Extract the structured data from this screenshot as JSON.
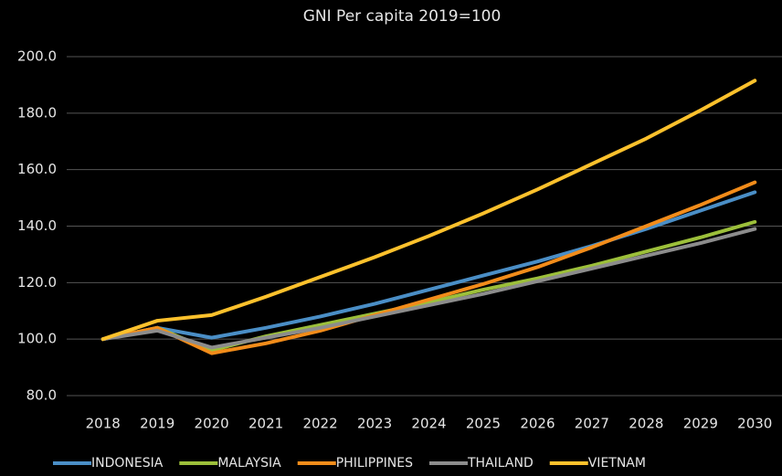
{
  "chart_data": {
    "type": "line",
    "title": "GNI Per capita 2019=100",
    "categories": [
      "2018",
      "2019",
      "2020",
      "2021",
      "2022",
      "2023",
      "2024",
      "2025",
      "2026",
      "2027",
      "2028",
      "2029",
      "2030"
    ],
    "series": [
      {
        "name": "INDONESIA",
        "color": "#4a8ec6",
        "values": [
          100,
          104,
          100.5,
          104,
          108,
          112.5,
          117.5,
          122.5,
          127.5,
          133,
          139,
          145.5,
          152
        ]
      },
      {
        "name": "MALAYSIA",
        "color": "#9cbf3a",
        "values": [
          100,
          104,
          96,
          101,
          105,
          109,
          113,
          117.5,
          121.5,
          126,
          131,
          136,
          141.5
        ]
      },
      {
        "name": "PHILIPPINES",
        "color": "#f28c1a",
        "values": [
          100,
          104,
          95,
          98.5,
          103,
          108.5,
          114,
          119.5,
          125.5,
          132.5,
          140,
          147.5,
          155.5
        ]
      },
      {
        "name": "THAILAND",
        "color": "#8c8c8c",
        "values": [
          100,
          103,
          97,
          100.5,
          104,
          108,
          112,
          116,
          120.5,
          125,
          129.5,
          134,
          139
        ]
      },
      {
        "name": "VIETNAM",
        "color": "#fdc12c",
        "values": [
          100,
          106.5,
          108.5,
          115,
          122,
          129,
          136.5,
          144.5,
          153,
          162,
          171,
          181,
          191.5
        ]
      }
    ],
    "ylim": [
      80,
      200
    ],
    "yticks": [
      {
        "value": 80,
        "label": "80.0"
      },
      {
        "value": 100,
        "label": "100.0"
      },
      {
        "value": 120,
        "label": "120.0"
      },
      {
        "value": 140,
        "label": "140.0"
      },
      {
        "value": 160,
        "label": "160.0"
      },
      {
        "value": 180,
        "label": "180.0"
      },
      {
        "value": 200,
        "label": "200.0"
      }
    ],
    "grid": true,
    "legend": "bottom"
  }
}
